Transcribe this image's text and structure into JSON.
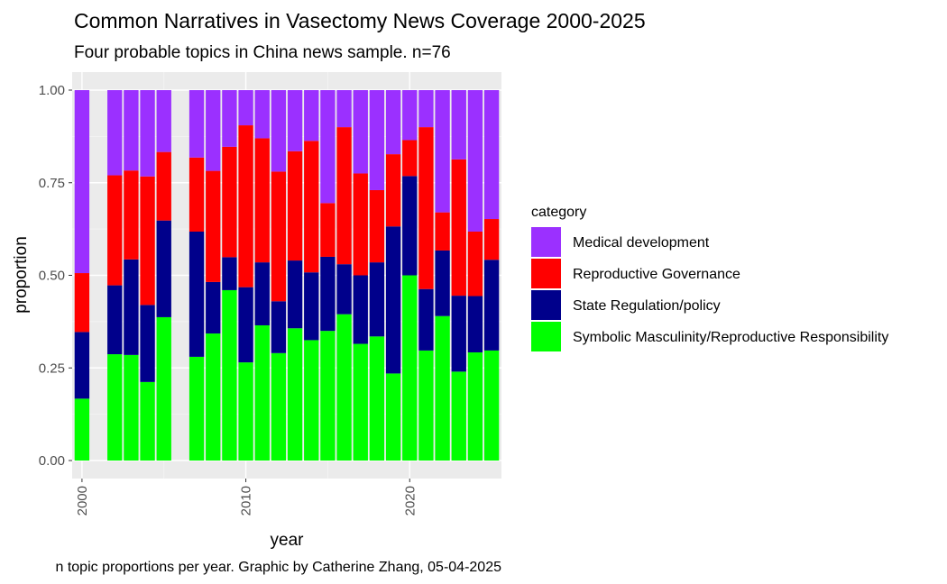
{
  "chart_data": {
    "type": "bar",
    "stacked": true,
    "title": "Common Narratives in Vasectomy News Coverage 2000-2025",
    "subtitle": "Four probable topics in China news sample. n=76",
    "caption": "n topic proportions per year. Graphic by Catherine Zhang, 05-04-2025",
    "xlabel": "year",
    "ylabel": "proportion",
    "ylim": [
      0,
      1
    ],
    "xlim": [
      1999.4,
      2025.6
    ],
    "x_ticks": [
      2000,
      2010,
      2020
    ],
    "y_ticks": [
      "0.00",
      "0.25",
      "0.50",
      "0.75",
      "1.00"
    ],
    "legend": {
      "title": "category",
      "position": "right",
      "entries": [
        "Medical development",
        "Reproductive Governance",
        "State Regulation/policy",
        "Symbolic Masculinity/Reproductive Responsibility"
      ]
    },
    "x": [
      2000,
      2002,
      2003,
      2004,
      2005,
      2007,
      2008,
      2009,
      2010,
      2011,
      2012,
      2013,
      2014,
      2015,
      2016,
      2017,
      2018,
      2019,
      2020,
      2021,
      2022,
      2023,
      2024,
      2025
    ],
    "series": [
      {
        "name": "Symbolic Masculinity/Reproductive Responsibility",
        "color": "#00ff00",
        "values": [
          0.167,
          0.287,
          0.285,
          0.212,
          0.387,
          0.28,
          0.343,
          0.46,
          0.265,
          0.365,
          0.29,
          0.357,
          0.325,
          0.35,
          0.395,
          0.315,
          0.335,
          0.235,
          0.5,
          0.297,
          0.39,
          0.24,
          0.292,
          0.297
        ]
      },
      {
        "name": "State Regulation/policy",
        "color": "#00008b",
        "values": [
          0.18,
          0.186,
          0.258,
          0.208,
          0.261,
          0.338,
          0.139,
          0.089,
          0.203,
          0.17,
          0.14,
          0.183,
          0.183,
          0.2,
          0.135,
          0.185,
          0.2,
          0.397,
          0.268,
          0.166,
          0.177,
          0.205,
          0.152,
          0.245
        ]
      },
      {
        "name": "Reproductive Governance",
        "color": "#ff0000",
        "values": [
          0.159,
          0.297,
          0.24,
          0.347,
          0.185,
          0.2,
          0.3,
          0.298,
          0.437,
          0.335,
          0.35,
          0.295,
          0.355,
          0.145,
          0.37,
          0.275,
          0.195,
          0.195,
          0.097,
          0.437,
          0.103,
          0.368,
          0.174,
          0.11
        ]
      },
      {
        "name": "Medical development",
        "color": "#9b30ff",
        "values": [
          0.494,
          0.23,
          0.217,
          0.233,
          0.167,
          0.182,
          0.218,
          0.153,
          0.095,
          0.13,
          0.22,
          0.165,
          0.137,
          0.305,
          0.1,
          0.225,
          0.27,
          0.173,
          0.135,
          0.1,
          0.33,
          0.187,
          0.382,
          0.348
        ]
      }
    ],
    "colors": {
      "panel_background": "#ebebeb",
      "grid_major": "#ffffff",
      "grid_minor": "#f5f5f5"
    }
  }
}
